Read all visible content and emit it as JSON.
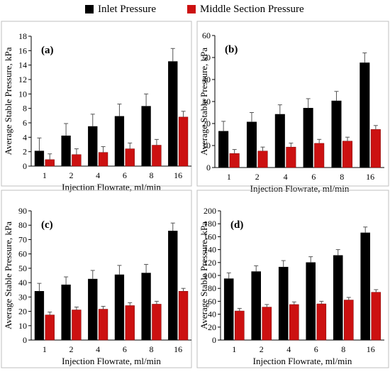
{
  "legend": {
    "series": [
      {
        "name": "Inlet Pressure",
        "color": "#000000"
      },
      {
        "name": "Middle Section Pressure",
        "color": "#cc1111"
      }
    ]
  },
  "chart_data": [
    {
      "type": "bar",
      "panel_label": "(a)",
      "xlabel": "Injection Flowrate, ml/min",
      "ylabel": "Average Stable Pressure, kPa",
      "categories": [
        "1",
        "2",
        "4",
        "6",
        "8",
        "16"
      ],
      "ylim": [
        0,
        18
      ],
      "yticks": [
        0,
        2,
        4,
        6,
        8,
        10,
        12,
        14,
        16,
        18
      ],
      "grid": false,
      "series": [
        {
          "name": "Inlet Pressure",
          "values": [
            2.1,
            4.2,
            5.5,
            6.9,
            8.3,
            14.5
          ],
          "errors": [
            1.8,
            1.7,
            1.7,
            1.7,
            1.7,
            1.8
          ]
        },
        {
          "name": "Middle Section Pressure",
          "values": [
            0.9,
            1.6,
            1.9,
            2.4,
            2.9,
            6.8
          ],
          "errors": [
            0.8,
            0.8,
            0.8,
            0.8,
            0.8,
            0.8
          ]
        }
      ]
    },
    {
      "type": "bar",
      "panel_label": "(b)",
      "xlabel": "Injection Flowrate, ml/min",
      "ylabel": "Average Stable Pressure, kPa",
      "categories": [
        "1",
        "2",
        "4",
        "6",
        "8",
        "16"
      ],
      "ylim": [
        0,
        60
      ],
      "yticks": [
        0,
        10,
        20,
        30,
        40,
        50,
        60
      ],
      "grid": false,
      "series": [
        {
          "name": "Inlet Pressure",
          "values": [
            16.5,
            20.7,
            24.2,
            27.0,
            30.3,
            47.6
          ],
          "errors": [
            4.5,
            4.3,
            4.3,
            4.3,
            4.3,
            4.5
          ]
        },
        {
          "name": "Middle Section Pressure",
          "values": [
            6.4,
            7.5,
            9.3,
            11.0,
            12.0,
            17.3
          ],
          "errors": [
            1.8,
            1.8,
            1.8,
            1.8,
            1.8,
            1.8
          ]
        }
      ]
    },
    {
      "type": "bar",
      "panel_label": "(c)",
      "xlabel": "Injection Flowrate, ml/min",
      "ylabel": "Average Stable Pressure, kPa",
      "categories": [
        "1",
        "2",
        "4",
        "6",
        "8",
        "16"
      ],
      "ylim": [
        0,
        90
      ],
      "yticks": [
        0,
        10,
        20,
        30,
        40,
        50,
        60,
        70,
        80,
        90
      ],
      "grid": false,
      "series": [
        {
          "name": "Inlet Pressure",
          "values": [
            34.0,
            38.5,
            42.5,
            45.5,
            46.7,
            76.0
          ],
          "errors": [
            5.5,
            5.5,
            6.0,
            6.5,
            6.0,
            5.5
          ]
        },
        {
          "name": "Middle Section Pressure",
          "values": [
            17.5,
            21.0,
            21.5,
            24.0,
            25.0,
            34.0
          ],
          "errors": [
            2.0,
            2.0,
            2.0,
            2.0,
            2.0,
            2.0
          ]
        }
      ]
    },
    {
      "type": "bar",
      "panel_label": "(d)",
      "xlabel": "Injection Flowrate, ml/min",
      "ylabel": "Average Stable Pressure, kPa",
      "categories": [
        "1",
        "2",
        "4",
        "6",
        "8",
        "16"
      ],
      "ylim": [
        0,
        200
      ],
      "yticks": [
        0,
        20,
        40,
        60,
        80,
        100,
        120,
        140,
        160,
        180,
        200
      ],
      "grid": false,
      "series": [
        {
          "name": "Inlet Pressure",
          "values": [
            95,
            106,
            113,
            120,
            131,
            166
          ],
          "errors": [
            9,
            9,
            10,
            9,
            9,
            9
          ]
        },
        {
          "name": "Middle Section Pressure",
          "values": [
            45,
            51,
            55,
            56,
            62,
            74
          ],
          "errors": [
            4,
            4,
            4,
            4,
            4,
            4
          ]
        }
      ]
    }
  ]
}
